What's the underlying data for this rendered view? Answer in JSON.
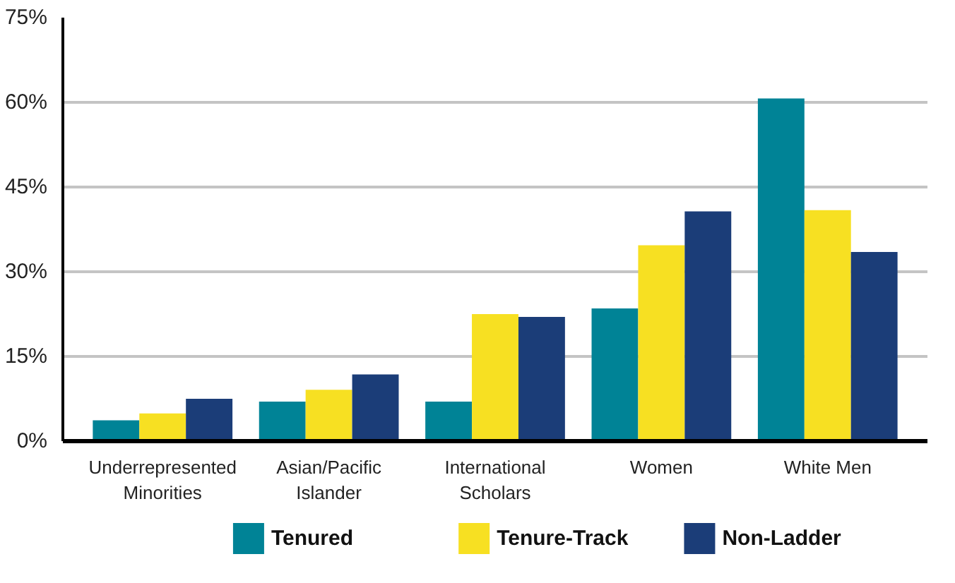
{
  "chart_data": {
    "type": "bar",
    "categories": [
      "Underrepresented\nMinorities",
      "Asian/Pacific\nIslander",
      "International\nScholars",
      "Women",
      "White Men"
    ],
    "series": [
      {
        "name": "Tenured",
        "color": "#008396",
        "values": [
          3.7,
          7.0,
          7.0,
          23.5,
          60.7
        ]
      },
      {
        "name": "Tenure-Track",
        "color": "#f7e022",
        "values": [
          4.9,
          9.1,
          22.5,
          34.7,
          40.9
        ]
      },
      {
        "name": "Non-Ladder",
        "color": "#1b3d78",
        "values": [
          7.5,
          11.8,
          22.0,
          40.7,
          33.5
        ]
      }
    ],
    "ylim": [
      0,
      75
    ],
    "yticks": [
      {
        "value": 0,
        "label": "0%"
      },
      {
        "value": 15,
        "label": "15%"
      },
      {
        "value": 30,
        "label": "30%"
      },
      {
        "value": 45,
        "label": "45%"
      },
      {
        "value": 60,
        "label": "60%"
      },
      {
        "value": 75,
        "label": "75%"
      }
    ],
    "grid": "y",
    "legend": "bottom"
  }
}
